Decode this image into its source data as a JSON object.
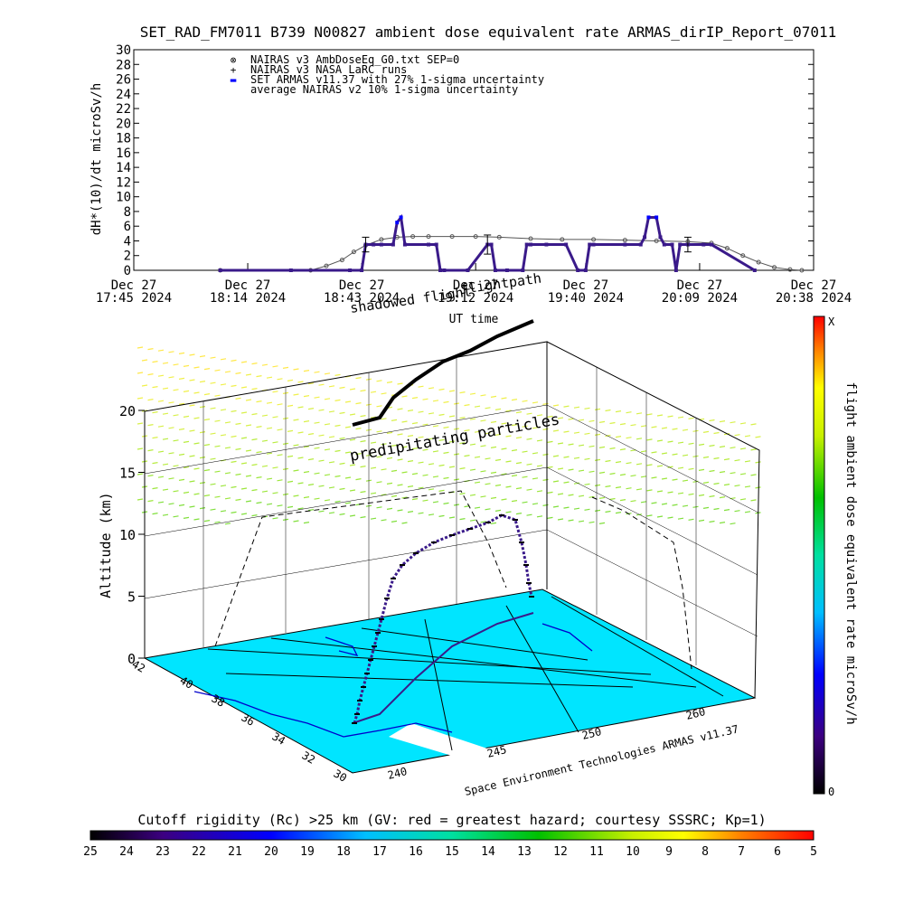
{
  "chart_data": [
    {
      "type": "line",
      "title": "SET_RAD_FM7011  B739 N00827 ambient dose equivalent rate ARMAS_dirIP_Report_07011",
      "ylabel": "dH*(10)/dt microSv/h",
      "xlabel": "UT time",
      "ylim": [
        0,
        30
      ],
      "yticks": [
        0,
        2,
        4,
        6,
        8,
        10,
        12,
        14,
        16,
        18,
        20,
        22,
        24,
        26,
        28,
        30
      ],
      "xlim_minutes": [
        1065,
        1238
      ],
      "xticks": [
        {
          "line1": "Dec 27",
          "line2": "17:45 2024",
          "minute": 1065
        },
        {
          "line1": "Dec 27",
          "line2": "18:14 2024",
          "minute": 1094
        },
        {
          "line1": "Dec 27",
          "line2": "18:43 2024",
          "minute": 1123
        },
        {
          "line1": "Dec 27",
          "line2": "19:12 2024",
          "minute": 1152
        },
        {
          "line1": "Dec 27",
          "line2": "19:40 2024",
          "minute": 1180
        },
        {
          "line1": "Dec 27",
          "line2": "20:09 2024",
          "minute": 1209
        },
        {
          "line1": "Dec 27",
          "line2": "20:38 2024",
          "minute": 1238
        }
      ],
      "legend_position": "top-left",
      "legend": [
        {
          "symbol": "⊗",
          "label": "NAIRAS v3 AmbDoseEq_G0.txt SEP=0",
          "color": "#000000"
        },
        {
          "symbol": "+",
          "label": "NAIRAS v3 NASA LaRC runs",
          "color": "#000000"
        },
        {
          "symbol": "▬",
          "label": "SET ARMAS v11.37 with 27% 1-sigma uncertainty",
          "color": "#0000ff"
        },
        {
          "symbol": "",
          "label": "average NAIRAS v2 10% 1-sigma uncertainty",
          "color": "#000000"
        }
      ],
      "series": [
        {
          "name": "NAIRAS v3 AmbDoseEq_G0.txt SEP=0",
          "color": "#555555",
          "x": [
            1087,
            1110,
            1114,
            1118,
            1121,
            1124,
            1128,
            1132,
            1136,
            1140,
            1146,
            1152,
            1158,
            1166,
            1174,
            1182,
            1190,
            1198,
            1206,
            1212,
            1216,
            1220,
            1224,
            1228,
            1232,
            1235
          ],
          "y": [
            0,
            0,
            0.6,
            1.4,
            2.5,
            3.4,
            4.2,
            4.5,
            4.6,
            4.6,
            4.6,
            4.6,
            4.5,
            4.3,
            4.2,
            4.2,
            4.1,
            4.0,
            3.9,
            3.7,
            3.0,
            2.0,
            1.1,
            0.4,
            0.1,
            0
          ]
        },
        {
          "name": "SET ARMAS v11.37 with 27% 1-sigma uncertainty",
          "color": "#3a1a8a",
          "x": [
            1087,
            1105,
            1120,
            1123,
            1124,
            1126,
            1128,
            1131,
            1132,
            1133,
            1134,
            1140,
            1142,
            1143,
            1144,
            1150,
            1155,
            1156,
            1157,
            1160,
            1164,
            1165,
            1166,
            1170,
            1175,
            1178,
            1180,
            1181,
            1182,
            1190,
            1194,
            1195,
            1196,
            1198,
            1199,
            1200,
            1202,
            1203,
            1204,
            1206,
            1210,
            1212,
            1223
          ],
          "y": [
            0,
            0,
            0,
            0,
            3.5,
            3.5,
            3.5,
            3.5,
            6.5,
            7.2,
            3.5,
            3.5,
            3.5,
            0,
            0,
            0,
            3.5,
            3.5,
            0,
            0,
            0,
            3.5,
            3.5,
            3.5,
            3.5,
            0,
            0,
            3.5,
            3.5,
            3.5,
            3.5,
            4.5,
            7.2,
            7.2,
            4.5,
            3.5,
            3.5,
            0,
            3.5,
            3.5,
            3.5,
            3.5,
            0
          ]
        }
      ]
    },
    {
      "type": "scatter",
      "title": "",
      "zlabel": "Altitude (km)",
      "z_ticks": [
        0,
        5,
        10,
        15,
        20
      ],
      "lat_ticks": [
        30,
        32,
        34,
        36,
        38,
        40,
        42
      ],
      "lon_ticks": [
        240,
        245,
        250,
        260
      ],
      "colorbar_right_label": "flight ambient dose equivalent rate microSv/h",
      "colorbar_right_top": "X",
      "colorbar_right_bottom": "0",
      "annotations": [
        "predipitating particles",
        "flightpath",
        "shadowed flight",
        "Space Environment Technologies ARMAS v11.37"
      ],
      "bottom_title": "Cutoff rigidity (Rc) >25 km (GV: red = greatest hazard; courtesy SSSRC; Kp=1)",
      "rc_ticks": [
        25,
        24,
        23,
        22,
        21,
        20,
        19,
        18,
        17,
        16,
        15,
        14,
        13,
        12,
        11,
        10,
        9,
        8,
        7,
        6,
        5
      ],
      "flight_altitude_km": [
        0,
        0.5,
        1.5,
        2.5,
        3.5,
        4.5,
        5.5,
        6.5,
        7.5,
        8.2,
        9.0,
        9.6,
        10.2,
        10.6,
        11.0,
        11.4,
        11.8,
        12.2,
        12.4,
        11.5,
        9.5,
        7.0,
        5.0
      ]
    }
  ]
}
